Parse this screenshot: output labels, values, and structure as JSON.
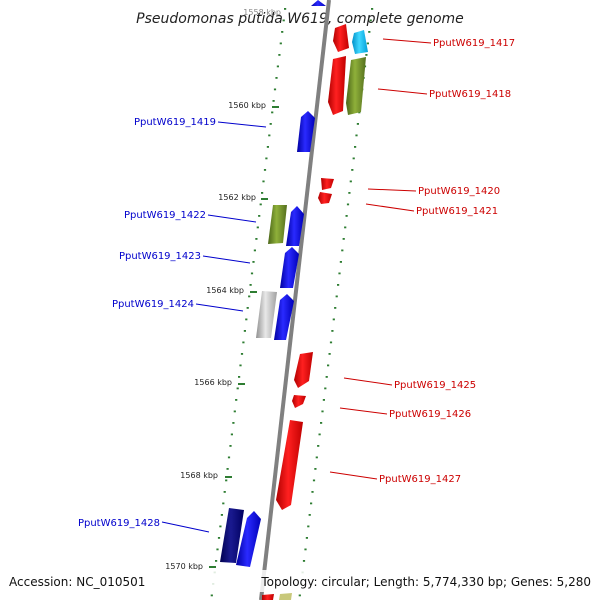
{
  "title": "Pseudomonas putida W619, complete genome",
  "footer": {
    "accession": "Accession: NC_010501",
    "topology": "Topology: circular; Length: 5,774,330 bp; Genes: 5,280"
  },
  "colors": {
    "minus_label": "#0000cc",
    "plus_label": "#cc0000",
    "red": "#ff0000",
    "blue": "#0000ff",
    "navy": "#000080",
    "olive": "#6b8e23",
    "cyan": "#00bfff",
    "gray": "#c0c0c0",
    "tick": "#2e7d32",
    "backbone": "#808080"
  },
  "ruler": {
    "labels": [
      "1558 kbp",
      "1560 kbp",
      "1562 kbp",
      "1564 kbp",
      "1566 kbp",
      "1568 kbp",
      "1570 kbp"
    ]
  },
  "genes_minus": [
    {
      "label": "PputW619_1419",
      "color": "blue"
    },
    {
      "label": "PputW619_1422",
      "color": "olive"
    },
    {
      "label": "PputW619_1423",
      "color": "blue"
    },
    {
      "label": "PputW619_1424",
      "color": "gray"
    },
    {
      "label": "PputW619_1428",
      "color": "navy"
    }
  ],
  "genes_plus": [
    {
      "label": "PputW619_1417",
      "color": "cyan"
    },
    {
      "label": "PputW619_1418",
      "color": "olive"
    },
    {
      "label": "PputW619_1420",
      "color": "red"
    },
    {
      "label": "PputW619_1421",
      "color": "red"
    },
    {
      "label": "PputW619_1425",
      "color": "red"
    },
    {
      "label": "PputW619_1426",
      "color": "red"
    },
    {
      "label": "PputW619_1427",
      "color": "red"
    }
  ]
}
